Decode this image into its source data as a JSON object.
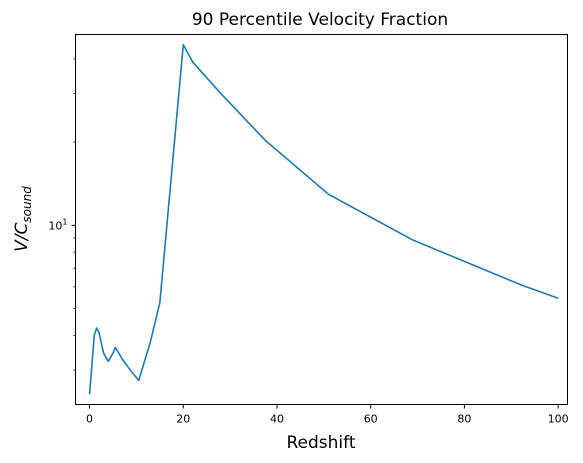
{
  "chart_data": {
    "type": "line",
    "title": "90 Percentile Velocity Fraction",
    "xlabel": "Redshift",
    "ylabel": {
      "base": "V/C",
      "subscript": "sound"
    },
    "xlim": [
      -3,
      102
    ],
    "ylim": [
      2.25,
      49
    ],
    "yscale": "log",
    "x_ticks": [
      0,
      20,
      40,
      60,
      80,
      100
    ],
    "y_ticks": [
      {
        "value": 10,
        "base": "10",
        "exponent": "1"
      }
    ],
    "grid": false,
    "series": [
      {
        "color": "#1f77b4",
        "x": [
          0.0,
          1.0,
          1.5,
          2.0,
          3.0,
          4.0,
          5.0,
          5.5,
          7.0,
          9.0,
          10.5,
          13.0,
          15.0,
          20.0,
          22.0,
          28.0,
          37.5,
          51.0,
          69.0,
          92.0,
          100.0
        ],
        "y": [
          2.45,
          4.0,
          4.25,
          4.1,
          3.45,
          3.22,
          3.45,
          3.62,
          3.28,
          2.95,
          2.75,
          3.8,
          5.25,
          45.0,
          39.0,
          30.0,
          20.3,
          12.95,
          8.85,
          6.1,
          5.45
        ]
      }
    ],
    "colors": {
      "axis": "#000000",
      "line": "#1f77b4",
      "background": "#ffffff"
    }
  }
}
